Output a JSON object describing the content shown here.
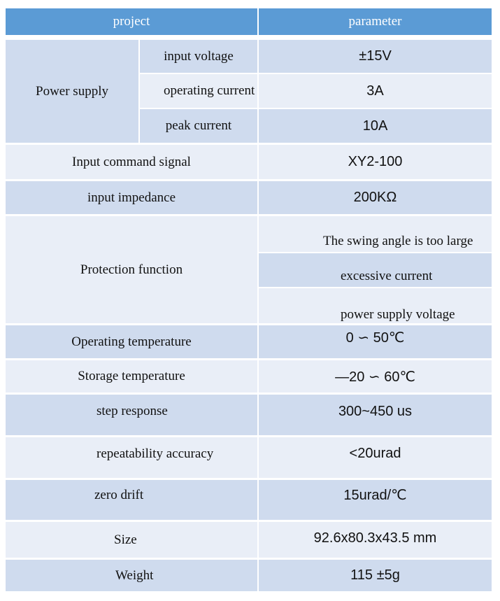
{
  "header": {
    "project": "project",
    "parameter": "parameter"
  },
  "power_supply": {
    "label": "Power supply",
    "rows": [
      {
        "name": "input voltage",
        "value": "±15V"
      },
      {
        "name": "operating current",
        "value": "3A"
      },
      {
        "name": "peak current",
        "value": "10A"
      }
    ]
  },
  "protection": {
    "name": "Protection function",
    "values": [
      "The swing angle is too large",
      "excessive current",
      "power supply voltage"
    ]
  },
  "rows": [
    {
      "name": "Input command signal",
      "value": "XY2-100"
    },
    {
      "name": "input impedance",
      "value": "200KΩ"
    },
    {
      "name": "Operating temperature",
      "value": "0 ∽ 50℃"
    },
    {
      "name": "Storage temperature",
      "value": "—20 ∽ 60℃"
    },
    {
      "name": "step response",
      "value": "300~450 us"
    },
    {
      "name": "repeatability accuracy",
      "value": "<20urad"
    },
    {
      "name": "zero drift",
      "value": "15urad/℃"
    },
    {
      "name": "Size",
      "value": "92.6x80.3x43.5 mm"
    },
    {
      "name": "Weight",
      "value": "115 ±5g"
    }
  ]
}
